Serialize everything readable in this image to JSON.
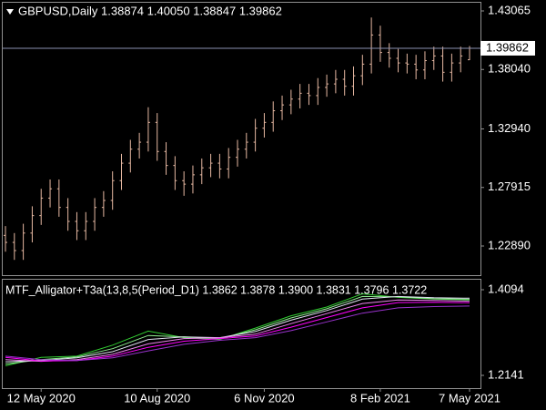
{
  "chart_data": [
    {
      "type": "ohlc",
      "title": "GBPUSD,Daily  1.38874 1.40050 1.38847 1.39862",
      "color": "#e6b8a2",
      "categories": [
        null,
        null,
        null,
        null,
        "12 May 2020",
        null,
        null,
        null,
        null,
        null,
        null,
        null,
        null,
        null,
        null,
        null,
        null,
        "10 Aug 2020",
        null,
        null,
        null,
        null,
        null,
        null,
        null,
        null,
        null,
        null,
        null,
        "6 Nov 2020",
        null,
        null,
        null,
        null,
        null,
        null,
        null,
        null,
        null,
        null,
        null,
        null,
        "8 Feb 2021",
        null,
        null,
        null,
        null,
        null,
        null,
        null,
        null,
        null,
        "7 May 2021"
      ],
      "open": [
        1.238,
        1.232,
        1.225,
        1.24,
        1.255,
        1.27,
        1.278,
        1.262,
        1.25,
        1.242,
        1.25,
        1.262,
        1.268,
        1.285,
        1.3,
        1.312,
        1.318,
        1.335,
        1.31,
        1.298,
        1.285,
        1.282,
        1.29,
        1.296,
        1.3,
        1.295,
        1.305,
        1.312,
        1.318,
        1.33,
        1.335,
        1.345,
        1.35,
        1.355,
        1.36,
        1.358,
        1.365,
        1.368,
        1.372,
        1.366,
        1.375,
        1.385,
        1.41,
        1.395,
        1.39,
        1.386,
        1.385,
        1.38,
        1.388,
        1.392,
        1.378,
        1.386,
        1.38874
      ],
      "high": [
        1.246,
        1.24,
        1.248,
        1.263,
        1.278,
        1.286,
        1.286,
        1.27,
        1.258,
        1.258,
        1.27,
        1.276,
        1.293,
        1.308,
        1.32,
        1.326,
        1.348,
        1.343,
        1.318,
        1.306,
        1.293,
        1.298,
        1.304,
        1.308,
        1.308,
        1.313,
        1.32,
        1.326,
        1.338,
        1.343,
        1.353,
        1.358,
        1.363,
        1.368,
        1.368,
        1.373,
        1.376,
        1.38,
        1.38,
        1.383,
        1.393,
        1.425,
        1.418,
        1.403,
        1.398,
        1.394,
        1.393,
        1.396,
        1.4,
        1.4,
        1.394,
        1.4,
        1.4005
      ],
      "low": [
        1.224,
        1.217,
        1.217,
        1.232,
        1.247,
        1.262,
        1.254,
        1.242,
        1.234,
        1.234,
        1.242,
        1.254,
        1.26,
        1.277,
        1.292,
        1.304,
        1.31,
        1.302,
        1.29,
        1.277,
        1.272,
        1.274,
        1.282,
        1.288,
        1.287,
        1.287,
        1.297,
        1.304,
        1.31,
        1.322,
        1.327,
        1.337,
        1.342,
        1.347,
        1.35,
        1.35,
        1.357,
        1.36,
        1.358,
        1.358,
        1.367,
        1.377,
        1.387,
        1.382,
        1.378,
        1.377,
        1.372,
        1.372,
        1.38,
        1.37,
        1.37,
        1.378,
        1.38847
      ],
      "close": [
        1.232,
        1.225,
        1.24,
        1.255,
        1.27,
        1.278,
        1.262,
        1.25,
        1.242,
        1.25,
        1.262,
        1.268,
        1.285,
        1.3,
        1.312,
        1.318,
        1.335,
        1.31,
        1.298,
        1.285,
        1.282,
        1.29,
        1.296,
        1.3,
        1.295,
        1.305,
        1.312,
        1.318,
        1.33,
        1.335,
        1.345,
        1.35,
        1.355,
        1.36,
        1.358,
        1.365,
        1.368,
        1.372,
        1.366,
        1.375,
        1.385,
        1.41,
        1.395,
        1.39,
        1.386,
        1.385,
        1.38,
        1.388,
        1.392,
        1.378,
        1.386,
        1.392,
        1.39862
      ],
      "last_price": 1.39862,
      "ylim": [
        1.20388,
        1.43847
      ],
      "yticks": [
        {
          "value": 1.2289,
          "label": "1.22890"
        },
        1.27915,
        {
          "value": 1.3294,
          "label": "1.32940"
        },
        {
          "value": 1.3804,
          "label": "1.38040"
        },
        1.43065
      ]
    },
    {
      "type": "line",
      "title": "MTF_Alligator+T3a(13,8,5(Period_D1) 1.3862 1.3878 1.3900 1.3831 1.3796 1.3722",
      "series": [
        {
          "color": "#32cd32",
          "values": [
            1.236,
            1.255,
            1.258,
            1.283,
            1.315,
            1.3,
            1.296,
            1.322,
            1.35,
            1.37,
            1.4,
            1.392,
            1.388,
            1.3862
          ]
        },
        {
          "color": "#90ee90",
          "values": [
            1.24,
            1.25,
            1.256,
            1.275,
            1.305,
            1.302,
            1.298,
            1.318,
            1.345,
            1.366,
            1.394,
            1.393,
            1.389,
            1.3878
          ]
        },
        {
          "color": "#e0e0f0",
          "values": [
            1.245,
            1.248,
            1.254,
            1.268,
            1.296,
            1.302,
            1.3,
            1.314,
            1.34,
            1.362,
            1.388,
            1.394,
            1.391,
            1.39
          ]
        },
        {
          "color": "#ee82ee",
          "values": [
            1.25,
            1.246,
            1.25,
            1.262,
            1.286,
            1.298,
            1.3,
            1.308,
            1.332,
            1.355,
            1.378,
            1.386,
            1.385,
            1.3831
          ]
        },
        {
          "color": "#ff00ff",
          "values": [
            1.255,
            1.247,
            1.248,
            1.258,
            1.278,
            1.292,
            1.298,
            1.304,
            1.324,
            1.346,
            1.368,
            1.38,
            1.381,
            1.3796
          ]
        },
        {
          "color": "#9932cc",
          "values": [
            1.258,
            1.25,
            1.248,
            1.254,
            1.27,
            1.285,
            1.294,
            1.3,
            1.316,
            1.336,
            1.356,
            1.368,
            1.371,
            1.3722
          ]
        }
      ],
      "ylim": [
        1.185,
        1.4343
      ],
      "yticks": [
        1.2141,
        1.4094
      ]
    }
  ]
}
